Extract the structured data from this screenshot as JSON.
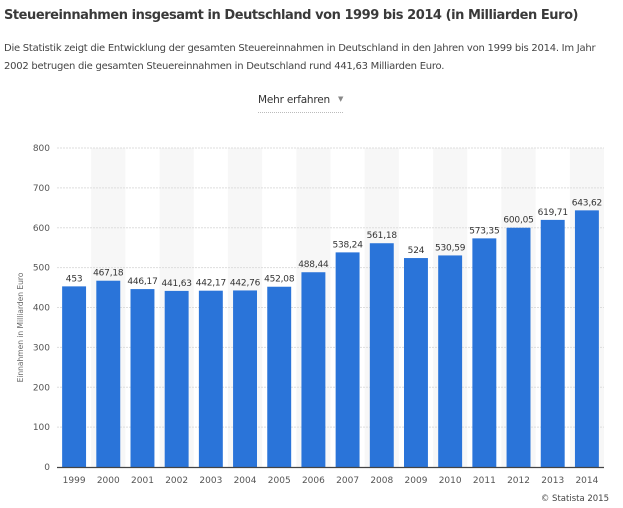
{
  "header": {
    "title": "Steuereinnahmen insgesamt in Deutschland von 1999 bis 2014 (in Milliarden Euro)",
    "description": "Die Statistik zeigt die Entwicklung der gesamten Steuereinnahmen in Deutschland in den Jahren von 1999 bis 2014. Im Jahr 2002 betrugen die gesamten Steuereinnahmen in Deutschland rund 441,63 Milliarden Euro.",
    "more_label": "Mehr erfahren",
    "more_icon": "caret-down-icon"
  },
  "footer": {
    "credit": "© Statista 2015"
  },
  "colors": {
    "bar": "#2a74d9",
    "band": "#f7f7f7",
    "grid": "#dddddd",
    "axis": "#444444"
  },
  "chart_data": {
    "type": "bar",
    "title": "Steuereinnahmen insgesamt in Deutschland von 1999 bis 2014 (in Milliarden Euro)",
    "xlabel": "",
    "ylabel": "Einnahmen in Milliarden Euro",
    "ylim": [
      0,
      800
    ],
    "yticks": [
      0,
      100,
      200,
      300,
      400,
      500,
      600,
      700,
      800
    ],
    "grid": true,
    "legend": "none",
    "categories": [
      "1999",
      "2000",
      "2001",
      "2002",
      "2003",
      "2004",
      "2005",
      "2006",
      "2007",
      "2008",
      "2009",
      "2010",
      "2011",
      "2012",
      "2013",
      "2014"
    ],
    "values": [
      453,
      467.18,
      446.17,
      441.63,
      442.17,
      442.76,
      452.08,
      488.44,
      538.24,
      561.18,
      524,
      530.59,
      573.35,
      600.05,
      619.71,
      643.62
    ],
    "value_labels": [
      "453",
      "467,18",
      "446,17",
      "441,63",
      "442,17",
      "442,76",
      "452,08",
      "488,44",
      "538,24",
      "561,18",
      "524",
      "530,59",
      "573,35",
      "600,05",
      "619,71",
      "643,62"
    ]
  }
}
